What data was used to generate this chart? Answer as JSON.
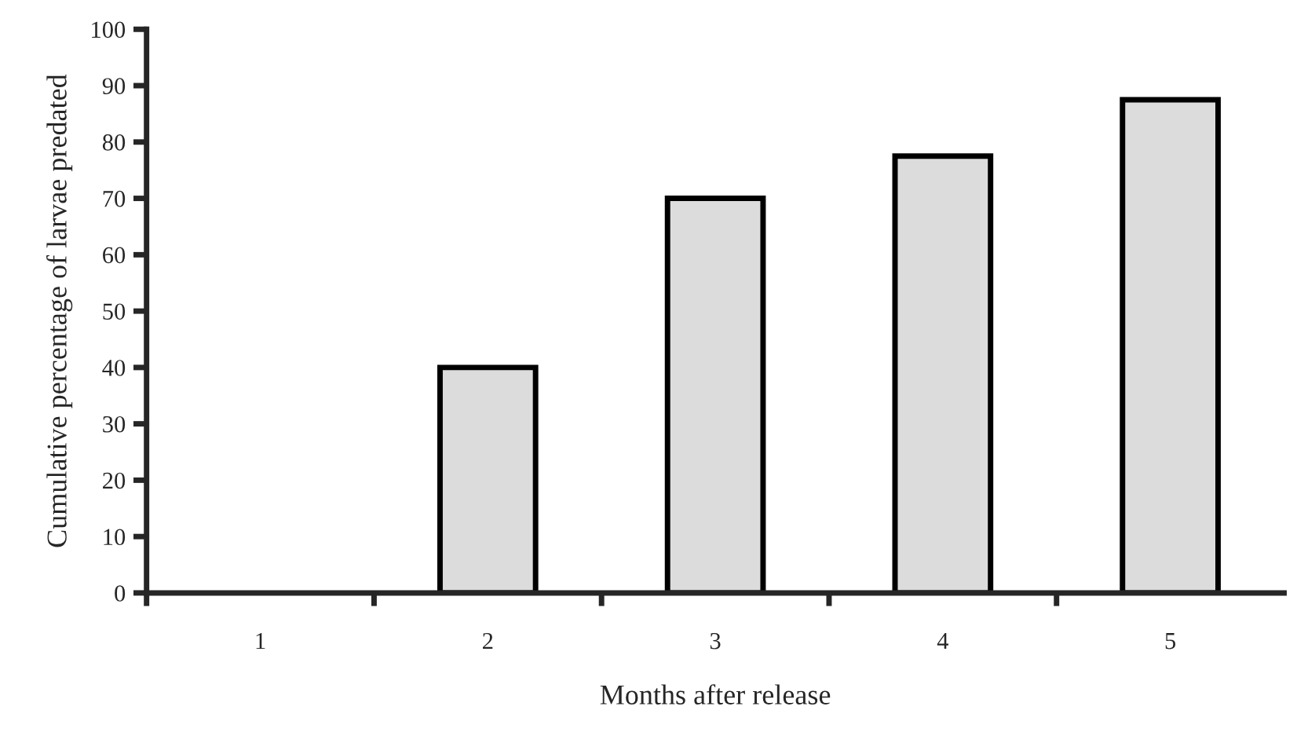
{
  "chart_data": {
    "type": "bar",
    "xlabel": "Months after release",
    "ylabel": "Cumulative percentage of larvae predated",
    "categories": [
      "1",
      "2",
      "3",
      "4",
      "5"
    ],
    "values": [
      0,
      40,
      70,
      77.5,
      87.5
    ],
    "color": "#dcdcdc",
    "ylim": [
      0,
      100
    ],
    "yticks": [
      0,
      10,
      20,
      30,
      40,
      50,
      60,
      70,
      80,
      90,
      100
    ],
    "grid": false
  }
}
